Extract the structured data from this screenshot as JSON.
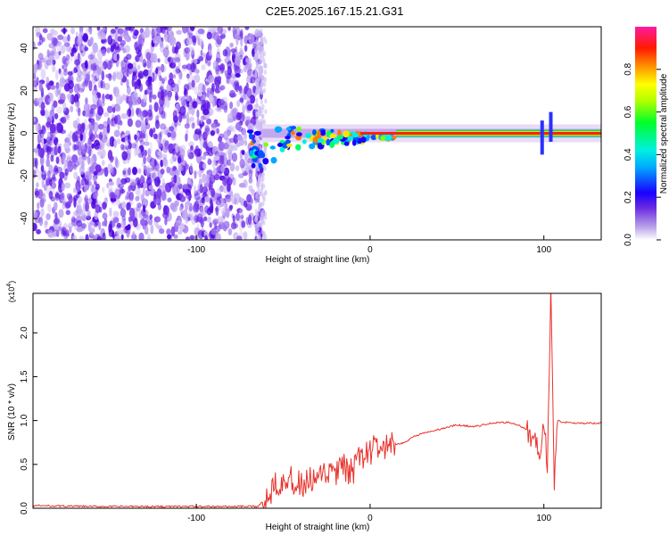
{
  "title": "C2E5.2025.167.15.21.G31",
  "chart_data": [
    {
      "type": "heatmap",
      "xlabel": "Height of straight line (km)",
      "ylabel": "Frequency (Hz)",
      "xlim": [
        -194,
        133
      ],
      "ylim": [
        -50,
        50
      ],
      "x_ticks": [
        -100,
        0,
        100
      ],
      "y_ticks": [
        -40,
        -20,
        0,
        20,
        40
      ],
      "grid": false,
      "colorbar": {
        "label": "Normalized spectral amplitude",
        "range": [
          0.0,
          1.0
        ],
        "ticks": [
          0.0,
          0.2,
          0.4,
          0.6,
          0.8
        ],
        "tick_labels": [
          "0.0",
          "0.2",
          "0.4",
          "0.6",
          "0.8"
        ]
      },
      "regions": [
        {
          "x_range": [
            -194,
            -62
          ],
          "description": "broadband noise, amplitude ~0.05-0.2 across all frequencies"
        },
        {
          "x_range": [
            -62,
            15
          ],
          "description": "signal emerging near 0 Hz, frequency spread ~±8 Hz, amplitude up to 1.0"
        },
        {
          "x_range": [
            15,
            133
          ],
          "description": "narrow carrier line at ~0 Hz, amplitude ~0.9-1.0"
        }
      ],
      "carrier_frequency_hz": 0
    },
    {
      "type": "line",
      "xlabel": "Height of straight line (km)",
      "ylabel": "SNR (10 * v/v)",
      "y_multiplier": "(x10^4)",
      "xlim": [
        -194,
        133
      ],
      "ylim": [
        0,
        2.45
      ],
      "x_ticks": [
        -100,
        0,
        100
      ],
      "y_ticks": [
        0.0,
        0.5,
        1.0,
        1.5,
        2.0
      ],
      "grid": false,
      "series": [
        {
          "color": "#e8322c",
          "x": [
            -194,
            -160,
            -120,
            -80,
            -65,
            -60,
            -55,
            -50,
            -45,
            -40,
            -35,
            -30,
            -25,
            -20,
            -15,
            -10,
            -5,
            0,
            5,
            10,
            15,
            20,
            25,
            30,
            40,
            50,
            60,
            70,
            80,
            85,
            90,
            95,
            98,
            100,
            102,
            104,
            106,
            108,
            110,
            115,
            120,
            133
          ],
          "y": [
            0.03,
            0.02,
            0.02,
            0.02,
            0.02,
            0.1,
            0.3,
            0.35,
            0.3,
            0.25,
            0.3,
            0.3,
            0.4,
            0.4,
            0.45,
            0.4,
            0.6,
            0.65,
            0.7,
            0.68,
            0.72,
            0.75,
            0.82,
            0.85,
            0.9,
            0.95,
            0.93,
            0.97,
            0.98,
            0.95,
            0.9,
            0.75,
            0.6,
            1.0,
            0.5,
            2.45,
            0.3,
            1.0,
            0.98,
            0.98,
            0.97,
            0.97
          ]
        }
      ]
    }
  ]
}
